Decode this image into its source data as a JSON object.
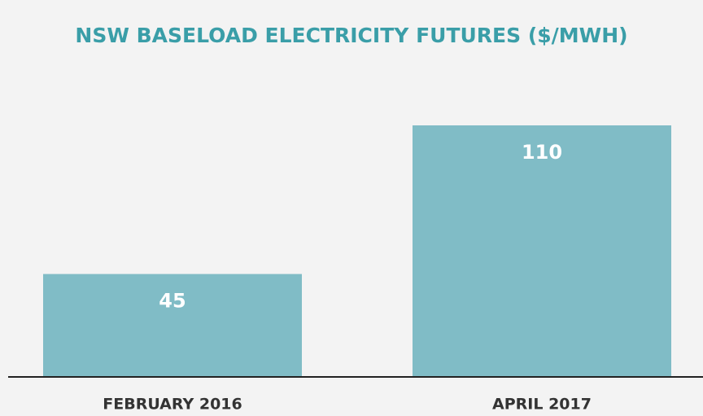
{
  "chart_data": {
    "type": "bar",
    "title": "NSW BASELOAD ELECTRICITY FUTURES ($/MWH)",
    "categories": [
      "FEBRUARY 2016",
      "APRIL 2017"
    ],
    "values": [
      45,
      110
    ],
    "color": "#80bcc6"
  }
}
